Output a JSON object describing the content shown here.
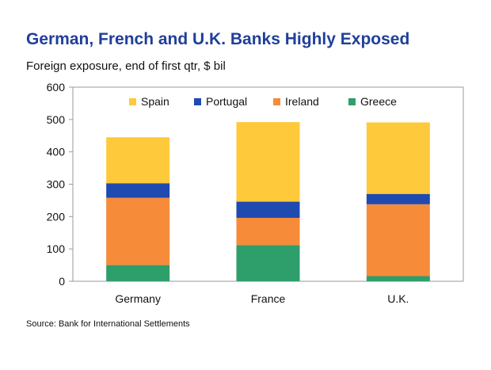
{
  "chart_data": {
    "type": "bar",
    "stacked": true,
    "title": "German, French and U.K. Banks Highly Exposed",
    "subtitle": "Foreign exposure, end of first qtr, $ bil",
    "source": "Source: Bank for International Settlements",
    "categories": [
      "Germany",
      "France",
      "U.K."
    ],
    "series": [
      {
        "name": "Greece",
        "color": "#2e9e6b",
        "values": [
          50,
          112,
          16
        ]
      },
      {
        "name": "Ireland",
        "color": "#f68b3a",
        "values": [
          208,
          84,
          222
        ]
      },
      {
        "name": "Portugal",
        "color": "#1f4ab0",
        "values": [
          45,
          50,
          32
        ]
      },
      {
        "name": "Spain",
        "color": "#fec93a",
        "values": [
          142,
          246,
          221
        ]
      }
    ],
    "legend_order": [
      "Spain",
      "Portugal",
      "Ireland",
      "Greece"
    ],
    "ylim": [
      0,
      600
    ],
    "yticks": [
      0,
      100,
      200,
      300,
      400,
      500,
      600
    ],
    "grid": false,
    "legend_position": "top"
  }
}
